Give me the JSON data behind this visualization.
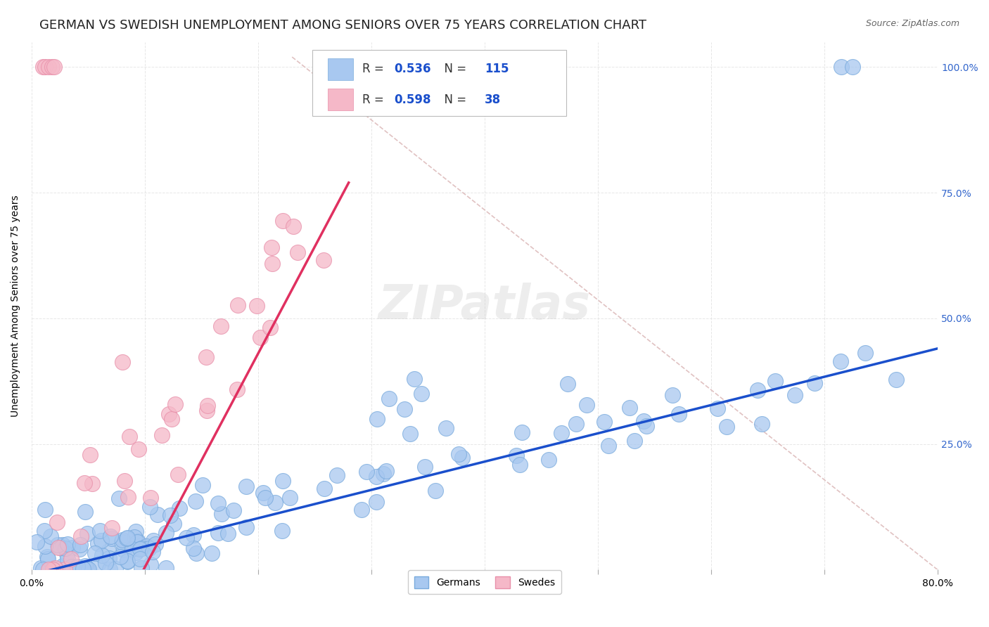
{
  "title": "GERMAN VS SWEDISH UNEMPLOYMENT AMONG SENIORS OVER 75 YEARS CORRELATION CHART",
  "source": "Source: ZipAtlas.com",
  "ylabel": "Unemployment Among Seniors over 75 years",
  "xlim": [
    0,
    0.8
  ],
  "ylim": [
    0,
    1.05
  ],
  "xtick_positions": [
    0.0,
    0.1,
    0.2,
    0.3,
    0.4,
    0.5,
    0.6,
    0.7,
    0.8
  ],
  "xticklabels": [
    "0.0%",
    "",
    "",
    "",
    "",
    "",
    "",
    "",
    "80.0%"
  ],
  "ytick_positions": [
    0.0,
    0.25,
    0.5,
    0.75,
    1.0
  ],
  "ytick_labels_right": [
    "",
    "25.0%",
    "50.0%",
    "75.0%",
    "100.0%"
  ],
  "german_color": "#a8c8f0",
  "swedish_color": "#f5b8c8",
  "german_edge_color": "#7aabdd",
  "swedish_edge_color": "#e890aa",
  "german_line_color": "#1a4fcc",
  "swedish_line_color": "#e03060",
  "dashed_line_color": "#ddbbbb",
  "german_R": 0.536,
  "german_N": 115,
  "swedish_R": 0.598,
  "swedish_N": 38,
  "legend_german_label": "Germans",
  "legend_swedish_label": "Swedes",
  "watermark_text": "ZIPatlas",
  "background_color": "#ffffff",
  "grid_color": "#e0e0e0",
  "title_fontsize": 13,
  "axis_label_fontsize": 10,
  "tick_fontsize": 10,
  "legend_value_color": "#1a4fcc",
  "legend_label_color": "#333333",
  "right_tick_color": "#3366cc"
}
